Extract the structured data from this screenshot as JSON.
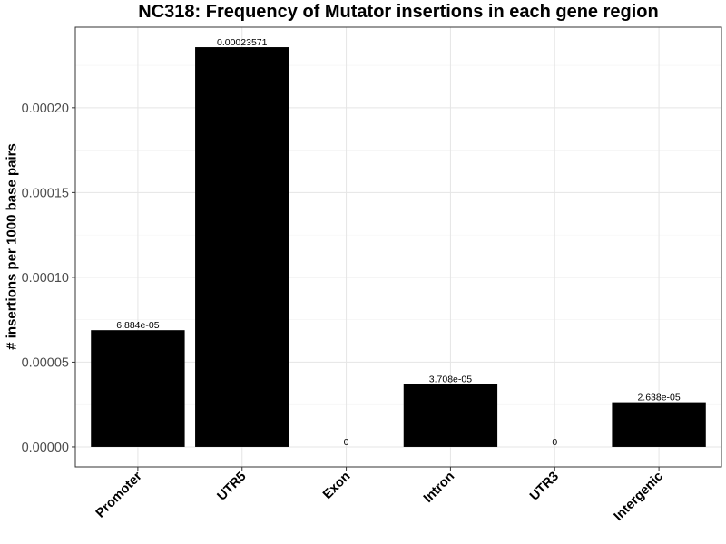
{
  "chart_data": {
    "type": "bar",
    "title": "NC318: Frequency of Mutator insertions in each gene region",
    "xlabel": "",
    "ylabel": "# insertions per 1000 base pairs",
    "categories": [
      "Promoter",
      "UTR5",
      "Exon",
      "Intron",
      "UTR3",
      "Intergenic"
    ],
    "values": [
      6.884e-05,
      0.00023571,
      0,
      3.708e-05,
      0,
      2.638e-05
    ],
    "value_labels": [
      "6.884e-05",
      "0.00023571",
      "0",
      "3.708e-05",
      "0",
      "2.638e-05"
    ],
    "ylim": [
      -1.17857e-05,
      0.0002474957
    ],
    "yticks": [
      0,
      5e-05,
      0.0001,
      0.00015,
      0.0002
    ],
    "ytick_labels": [
      "0.00000",
      "0.00005",
      "0.00010",
      "0.00015",
      "0.00020"
    ],
    "grid": true,
    "bar_color": "#000000",
    "legend": "none"
  }
}
